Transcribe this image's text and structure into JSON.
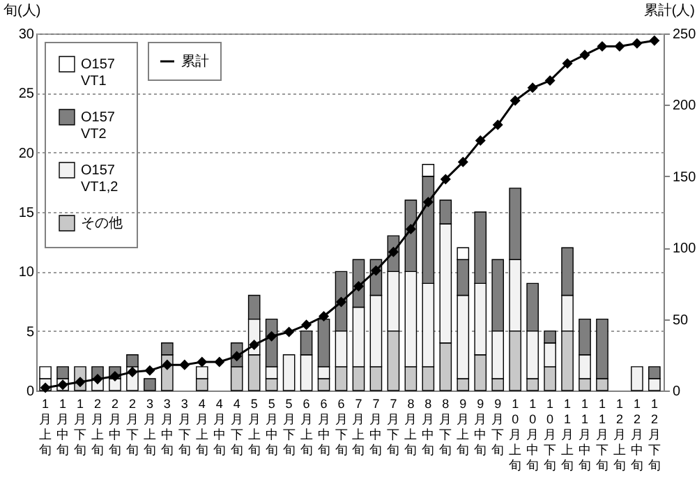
{
  "chart_data": {
    "type": "bar",
    "stacked": true,
    "ylabel": "旬(人)",
    "y2label": "累計(人)",
    "categories": [
      "1月上旬",
      "1月中旬",
      "1月下旬",
      "2月上旬",
      "2月中旬",
      "2月下旬",
      "3月上旬",
      "3月中旬",
      "3月下旬",
      "4月上旬",
      "4月中旬",
      "4月下旬",
      "5月上旬",
      "5月中旬",
      "5月下旬",
      "6月上旬",
      "6月中旬",
      "6月下旬",
      "7月上旬",
      "7月中旬",
      "7月下旬",
      "8月上旬",
      "8月中旬",
      "8月下旬",
      "9月上旬",
      "9月中旬",
      "9月下旬",
      "10月上旬",
      "10月中旬",
      "10月下旬",
      "11月上旬",
      "11月中旬",
      "11月下旬",
      "12月上旬",
      "12月中旬",
      "12月下旬"
    ],
    "series": [
      {
        "name": "その他",
        "color": "#c8c8c8",
        "values": [
          0,
          0,
          2,
          0,
          0,
          0,
          0,
          3,
          0,
          1,
          0,
          2,
          3,
          1,
          0,
          0,
          1,
          2,
          2,
          2,
          5,
          2,
          2,
          4,
          1,
          3,
          1,
          5,
          1,
          2,
          5,
          1,
          1,
          0,
          0,
          0
        ]
      },
      {
        "name": "O157 VT1,2",
        "color": "#f2f2f2",
        "values": [
          1,
          1,
          0,
          1,
          1,
          2,
          0,
          0,
          0,
          1,
          0,
          0,
          3,
          1,
          3,
          3,
          1,
          3,
          5,
          6,
          5,
          8,
          7,
          10,
          7,
          6,
          4,
          6,
          4,
          2,
          3,
          2,
          0,
          0,
          2,
          1
        ]
      },
      {
        "name": "O157 VT2",
        "color": "#7f7f7f",
        "values": [
          0,
          1,
          0,
          1,
          1,
          1,
          1,
          1,
          0,
          0,
          0,
          2,
          2,
          4,
          0,
          2,
          4,
          5,
          4,
          3,
          3,
          6,
          9,
          2,
          3,
          6,
          6,
          6,
          4,
          1,
          4,
          3,
          5,
          0,
          0,
          1
        ]
      },
      {
        "name": "O157 VT1",
        "color": "#ffffff",
        "values": [
          1,
          0,
          0,
          0,
          0,
          0,
          0,
          0,
          0,
          0,
          0,
          0,
          0,
          0,
          0,
          0,
          0,
          0,
          0,
          0,
          0,
          0,
          1,
          0,
          1,
          0,
          0,
          0,
          0,
          0,
          0,
          0,
          0,
          0,
          0,
          0
        ]
      },
      {
        "name": "累計",
        "type": "line",
        "axis": "y2",
        "color": "#000000",
        "marker": "diamond",
        "values": [
          2,
          4,
          6,
          8,
          10,
          13,
          14,
          18,
          18,
          20,
          20,
          24,
          32,
          38,
          41,
          46,
          52,
          62,
          73,
          84,
          97,
          113,
          132,
          148,
          160,
          175,
          186,
          203,
          212,
          217,
          229,
          235,
          241,
          241,
          243,
          245
        ]
      }
    ],
    "ylim": [
      0,
      30
    ],
    "yticks": [
      0,
      5,
      10,
      15,
      20,
      25,
      30
    ],
    "y2lim": [
      0,
      250
    ],
    "y2ticks": [
      0,
      50,
      100,
      150,
      200,
      250
    ],
    "grid": "y",
    "legend": "top left"
  }
}
